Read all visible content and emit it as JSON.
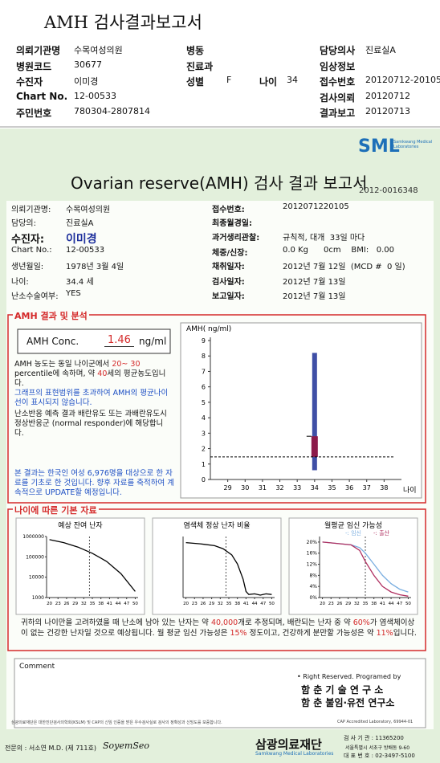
{
  "header": {
    "title": "AMH 검사결과보고서",
    "left": [
      {
        "label": "의뢰기관명",
        "value": "수목여성의원"
      },
      {
        "label": "병원코드",
        "value": "30677"
      },
      {
        "label": "수진자",
        "value": "이미경"
      },
      {
        "label": "Chart No.",
        "value": "12-00533"
      },
      {
        "label": "주민번호",
        "value": "780304-2807814"
      }
    ],
    "middle": [
      {
        "label": "병동"
      },
      {
        "label": "진료과"
      },
      {
        "label": "성별",
        "value": "F"
      }
    ],
    "age": {
      "label": "나이",
      "value": 34
    },
    "right": [
      {
        "label": "담당의사",
        "value": "진료실A"
      },
      {
        "label": "임상정보"
      },
      {
        "label": "접수번호",
        "value": "20120712-20105"
      },
      {
        "label": "검사의뢰",
        "value": "20120712"
      },
      {
        "label": "결과보고",
        "value": "20120713"
      }
    ]
  },
  "report": {
    "logo": "SML",
    "logo_sub": "Samkwang Medical Laboratories",
    "title": "Ovarian reserve(AMH) 검사 결과 보고서",
    "number": "2012-0016348",
    "left": [
      {
        "label": "의뢰기관명:",
        "value": "수목여성의원"
      },
      {
        "label": "담당의:",
        "value": "진료실A"
      },
      {
        "label": "수진자:",
        "value": "이미경"
      },
      {
        "label": "Chart No.:",
        "value": "12-00533"
      },
      {
        "label": "생년월일:",
        "value": "1978년 3월 4일"
      },
      {
        "label": "나이:",
        "value": "34.4 세"
      },
      {
        "label": "난소수술여부:",
        "value": "YES"
      }
    ],
    "right": [
      {
        "label": "접수번호:",
        "value": "2012071220105"
      },
      {
        "label": "최종월경일:"
      },
      {
        "label": "과거생리관찰:",
        "value": "규칙적, 대개  33일 마다"
      },
      {
        "label": "체중/신장:",
        "value": "0.0 Kg      0cm    BMI:   0.00"
      },
      {
        "label": "채취일자:",
        "value": "2012년 7월 12일  (MCD #  0 일)"
      },
      {
        "label": "검사일자:",
        "value": "2012년 7월 13일"
      },
      {
        "label": "보고일자:",
        "value": "2012년 7월 13일"
      }
    ]
  },
  "amh": {
    "heading": "AMH 결과 및 분석",
    "conc_label": "AMH Conc.",
    "value": "1.46",
    "unit": "ng/ml",
    "para1": [
      "AMH 농도는 동일 나이군에서 ",
      "20~ 30",
      " percentile에 속하며, 약 ",
      "40",
      "세의 평균농도입니다."
    ],
    "note1": "그래프의 표현범위를 초과하여 AMH의 평균나이선이 표시되지 않습니다.",
    "para2": "난소반응 예측 결과 배란유도 또는 과배란유도시 정상반응군 (normal responder)에 해당합니다.",
    "note2": "본 결과는 한국인 여성 6,976명을 대상으로 한 자료를 기초로 한 것입니다. 향후 자료를 축적하여 계속적으로 UPDATE할 예정입니다.",
    "chart": {
      "y_label": "AMH( ng/ml)",
      "x_label": "나이",
      "xlim": [
        28,
        39
      ],
      "ylim": [
        0,
        9
      ],
      "xticks": [
        29,
        30,
        31,
        32,
        33,
        34,
        35,
        36,
        37,
        38
      ],
      "yticks": [
        0,
        1,
        2,
        3,
        4,
        5,
        6,
        7,
        8,
        9
      ],
      "range": {
        "x": 34,
        "low": 0.6,
        "high": 8.2,
        "color": "#3f4fa6"
      },
      "patient": {
        "x": 34,
        "low": 1.46,
        "high": 2.8,
        "color": "#8b1a4a"
      },
      "reference_line": 1.46
    }
  },
  "basic": {
    "heading": "나이에 따른 기본 자료",
    "charts": [
      {
        "title": "예상 잔여 난자",
        "log": true,
        "xlim": [
          19,
          51
        ],
        "ylim": [
          1000,
          1000000
        ],
        "xticks": [
          20,
          23,
          26,
          29,
          32,
          35,
          38,
          41,
          44,
          47,
          50
        ],
        "yticks": [
          1000,
          10000,
          100000,
          1000000
        ],
        "age_line": 34,
        "series": [
          {
            "color": "#000000",
            "x": [
              20,
              25,
              30,
              35,
              40,
              45,
              50
            ],
            "values": [
              700000,
              500000,
              300000,
              150000,
              60000,
              15000,
              2000
            ]
          }
        ]
      },
      {
        "title": "염색체 정상 난자 비율",
        "log": false,
        "xlim": [
          19,
          51
        ],
        "ylim": [
          0,
          100
        ],
        "xticks": [
          20,
          23,
          26,
          29,
          32,
          35,
          38,
          41,
          44,
          47,
          50
        ],
        "age_line": 34,
        "series": [
          {
            "color": "#000000",
            "x": [
              20,
              25,
              30,
              33,
              36,
              38,
              40,
              41,
              42,
              44,
              46,
              48,
              50
            ],
            "values": [
              90,
              88,
              85,
              80,
              70,
              55,
              30,
              10,
              5,
              6,
              4,
              6,
              5
            ]
          }
        ]
      },
      {
        "title": "월평균 임신 가능성",
        "log": false,
        "xlim": [
          19,
          51
        ],
        "ylim": [
          0,
          22
        ],
        "xticks": [
          20,
          23,
          26,
          29,
          32,
          35,
          38,
          41,
          44,
          47,
          50
        ],
        "yticks": [
          {
            "value": 0,
            "label": "0%"
          },
          {
            "value": 4,
            "label": "4%"
          },
          {
            "value": 8,
            "label": "8%"
          },
          {
            "value": 12,
            "label": "12%"
          },
          {
            "value": 16,
            "label": "16%"
          },
          {
            "value": 20,
            "label": "20%"
          }
        ],
        "age_line": 35,
        "series": [
          {
            "name": "-: 임신",
            "color": "#7aaee0",
            "x": [
              20,
              30,
              33,
              35,
              38,
              41,
              44,
              47,
              50
            ],
            "values": [
              20,
              19,
              18,
              16,
              12,
              8,
              5,
              3,
              2
            ]
          },
          {
            "name": "-: 출산",
            "color": "#b03060",
            "x": [
              20,
              30,
              33,
              35,
              38,
              41,
              44,
              47,
              50
            ],
            "values": [
              20,
              19,
              17,
              13,
              8,
              4,
              2,
              1,
              0.5
            ]
          }
        ]
      }
    ],
    "summary": [
      "귀하의 나이만을 고려하였을 때 난소에 남아 있는 난자는 약 ",
      "40,000",
      "개로 추정되며, 배란되는 난자 중 약 ",
      "60%",
      "가 염색체이상이 없는 건강한 난자일 것으로 예상됩니다. 월 평균 임신 가능성은 ",
      "15%",
      " 정도이고, 건강하게 분만할 가능성은 약 ",
      "11%",
      "입니다."
    ]
  },
  "comment": {
    "label": "Comment",
    "rights": "• Right Reserved. Programed by",
    "lab1": "함 춘 기 술 연 구 소",
    "lab2": "함 춘 불임·유전 연구소"
  },
  "footer": {
    "note": "삼광의료재단은 대한진단검사의학회(KSLM) 및 CAP의 신임 인증을 받은 우수검사실로 검사의 정확성과 신빙도를 보증합니다.",
    "cap": "CAP Accredited Laboratory, 69944-01",
    "doctor": "전문의 : 서소연 M.D. (제 711호)",
    "signature": "SoyemSeo",
    "org": "삼광의료재단",
    "org_en": "Samkwang Medical Laboratories",
    "code": "검 사 기 관 : 11365200",
    "address": "서울특별시 서초구 방배동 9-60",
    "phone": "대 표 번 호 : 02-3497-5100"
  }
}
